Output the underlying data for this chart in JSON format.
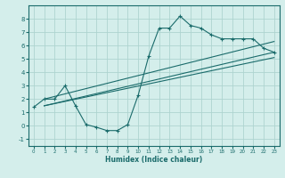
{
  "line1_x": [
    0,
    1,
    2,
    3,
    4,
    5,
    6,
    7,
    8,
    9,
    10,
    11,
    12,
    13,
    14,
    15,
    16,
    17,
    18,
    19,
    20,
    21,
    22,
    23
  ],
  "line1_y": [
    1.4,
    2.0,
    2.0,
    3.0,
    1.5,
    0.1,
    -0.1,
    -0.35,
    -0.35,
    0.1,
    2.3,
    5.2,
    7.3,
    7.3,
    8.2,
    7.5,
    7.3,
    6.8,
    6.5,
    6.5,
    6.5,
    6.5,
    5.8,
    5.5
  ],
  "line2_x": [
    1,
    23
  ],
  "line2_y": [
    1.5,
    5.5
  ],
  "line3_x": [
    1,
    23
  ],
  "line3_y": [
    2.0,
    6.3
  ],
  "line4_x": [
    1,
    23
  ],
  "line4_y": [
    1.5,
    5.1
  ],
  "color": "#1a6b6b",
  "bg_color": "#d4eeeb",
  "grid_color": "#aed4d0",
  "xlabel": "Humidex (Indice chaleur)",
  "xlim": [
    -0.5,
    23.5
  ],
  "ylim": [
    -1.5,
    9.0
  ],
  "yticks": [
    -1,
    0,
    1,
    2,
    3,
    4,
    5,
    6,
    7,
    8
  ],
  "xticks": [
    0,
    1,
    2,
    3,
    4,
    5,
    6,
    7,
    8,
    9,
    10,
    11,
    12,
    13,
    14,
    15,
    16,
    17,
    18,
    19,
    20,
    21,
    22,
    23
  ]
}
